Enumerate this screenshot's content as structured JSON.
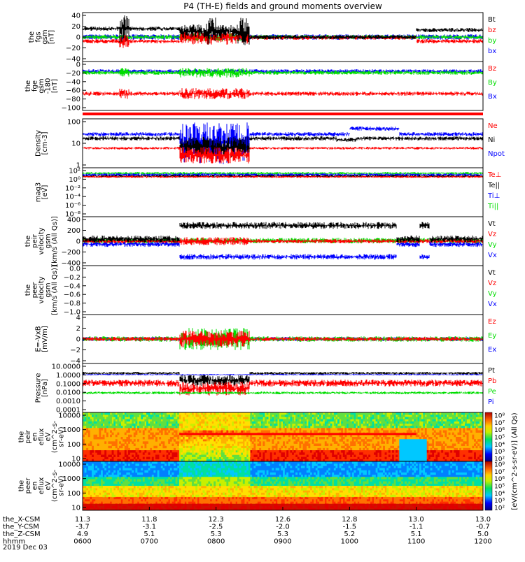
{
  "title": "P4 (TH-E) fields and ground moments overview",
  "date_label": "2019 Dec 03",
  "colors": {
    "black": "#000000",
    "red": "#ff0000",
    "green": "#00dd00",
    "blue": "#0000ff"
  },
  "footer": {
    "rows": [
      {
        "label": "the_X-CSM",
        "values": [
          "11.3",
          "11.8",
          "12.3",
          "12.6",
          "12.8",
          "13.0",
          "13.0"
        ]
      },
      {
        "label": "the_Y-CSM",
        "values": [
          "-3.7",
          "-3.1",
          "-2.5",
          "-2.0",
          "-1.5",
          "-1.1",
          "-0.7"
        ]
      },
      {
        "label": "the_Z-CSM",
        "values": [
          "4.9",
          "5.1",
          "5.3",
          "5.3",
          "5.2",
          "5.1",
          "5.0"
        ]
      },
      {
        "label": "hhmm",
        "values": [
          "0600",
          "0700",
          "0800",
          "0900",
          "1000",
          "1100",
          "1200"
        ]
      }
    ]
  },
  "chart_data": [
    {
      "type": "line",
      "id": "p1",
      "ylabel": [
        "the",
        "fgs",
        "gsm",
        "[nT]"
      ],
      "ylim": [
        -40,
        40
      ],
      "ticks": [
        "40",
        "20",
        "0",
        "−20",
        "−40"
      ],
      "legend": [
        {
          "t": "Bt",
          "c": "#000000"
        },
        {
          "t": "bz",
          "c": "#ff0000"
        },
        {
          "t": "by",
          "c": "#00dd00"
        },
        {
          "t": "bx",
          "c": "#0000ff"
        }
      ],
      "x": [
        6.0,
        7.3,
        7.45,
        7.85,
        8.3,
        8.5,
        10.7,
        11.0,
        12.0
      ]
    },
    {
      "type": "line",
      "id": "p2",
      "ylabel": [
        "the",
        "fge",
        "gsm",
        "-180",
        "[nT]"
      ],
      "ylim": [
        -100,
        20
      ],
      "ticks": [
        "0",
        "−20",
        "−40",
        "−60",
        "−80",
        "−100"
      ],
      "legend": [
        {
          "t": "Bz",
          "c": "#ff0000"
        },
        {
          "t": "By",
          "c": "#00dd00"
        },
        {
          "t": "Bx",
          "c": "#0000ff"
        }
      ],
      "x": [
        6.0,
        12.0
      ]
    },
    {
      "type": "line",
      "id": "p3",
      "ylabel": [
        "Density",
        "[cm-3]"
      ],
      "ylog": true,
      "ticks": [
        "100",
        "10",
        "1"
      ],
      "legend": [
        {
          "t": "Ne",
          "c": "#ff0000"
        },
        {
          "t": "Ni",
          "c": "#000000"
        },
        {
          "t": "Npot",
          "c": "#0000ff"
        }
      ],
      "x": [
        6.0,
        7.45,
        8.5,
        9.8,
        10.0,
        10.7,
        11.0,
        12.0
      ]
    },
    {
      "type": "line",
      "id": "p4",
      "ylabel": [
        "mag3",
        "[eV]"
      ],
      "ylog": true,
      "ticks": [
        "10²",
        "10⁰",
        "10⁻²",
        "10⁻⁴",
        "10⁻⁶",
        "10⁻⁸"
      ],
      "legend": [
        {
          "t": "Te⊥",
          "c": "#ff0000"
        },
        {
          "t": "Te||",
          "c": "#000000"
        },
        {
          "t": "Ti⊥",
          "c": "#0000ff"
        },
        {
          "t": "Ti||",
          "c": "#00dd00"
        }
      ],
      "x": [
        6.0,
        12.0
      ]
    },
    {
      "type": "line",
      "id": "p5",
      "ylabel": [
        "the",
        "peir",
        "velocity",
        "gsm",
        "[km/s (All Qs)]"
      ],
      "ylim": [
        -400,
        400
      ],
      "ticks": [
        "400",
        "200",
        "0",
        "−200",
        "−400"
      ],
      "legend": [
        {
          "t": "Vt",
          "c": "#000000"
        },
        {
          "t": "Vz",
          "c": "#ff0000"
        },
        {
          "t": "Vy",
          "c": "#00dd00"
        },
        {
          "t": "Vx",
          "c": "#0000ff"
        }
      ],
      "x": [
        6.0,
        7.45,
        8.5,
        10.7,
        11.0,
        11.2,
        12.0
      ],
      "series": [
        {
          "name": "Vt",
          "values": [
            30,
            270,
            300,
            300,
            30,
            280,
            30
          ]
        },
        {
          "name": "Vx",
          "values": [
            -60,
            -270,
            -300,
            -300,
            -60,
            -280,
            -60
          ]
        }
      ]
    },
    {
      "type": "line",
      "id": "p6",
      "ylabel": [
        "the",
        "peer",
        "velocity",
        "gsm",
        "[km/s (All Qs)]"
      ],
      "ylim": [
        -6,
        0
      ],
      "ticks": [
        "0.0",
        "−0.2",
        "−0.4",
        "−0.6",
        "−0.8",
        "−1.0"
      ],
      "legend": [
        {
          "t": "Vt",
          "c": "#000000"
        },
        {
          "t": "Vz",
          "c": "#ff0000"
        },
        {
          "t": "Vy",
          "c": "#00dd00"
        },
        {
          "t": "Vx",
          "c": "#0000ff"
        }
      ],
      "x": []
    },
    {
      "type": "line",
      "id": "p7",
      "ylabel": [
        "E=-VxB",
        "[mV/m]"
      ],
      "ylim": [
        -4,
        4
      ],
      "ticks": [
        "4",
        "2",
        "0",
        "−2",
        "−4"
      ],
      "legend": [
        {
          "t": "Ez",
          "c": "#ff0000"
        },
        {
          "t": "Ey",
          "c": "#00dd00"
        },
        {
          "t": "Ex",
          "c": "#0000ff"
        }
      ],
      "x": [
        6.0,
        12.0
      ]
    },
    {
      "type": "line",
      "id": "p8",
      "ylabel": [
        "Pressure",
        "[nPa]"
      ],
      "ylog": true,
      "ticks": [
        "10.0000",
        "1.0000",
        "0.1000",
        "0.0100",
        "0.0010",
        "0.0001"
      ],
      "legend": [
        {
          "t": "Pt",
          "c": "#000000"
        },
        {
          "t": "Pb",
          "c": "#ff0000"
        },
        {
          "t": "Pe",
          "c": "#00dd00"
        },
        {
          "t": "Pi",
          "c": "#0000ff"
        }
      ],
      "x": [
        6.0,
        12.0
      ]
    },
    {
      "type": "heatmap",
      "id": "p9",
      "ylabel": [
        "the",
        "peir",
        "en",
        "eflux",
        "eV",
        "(cm^2-s-",
        "sr-eV)"
      ],
      "ylog": true,
      "ticks": [
        "10000",
        "1000",
        "100",
        "10"
      ],
      "x": [
        6.0,
        12.0
      ]
    },
    {
      "type": "heatmap",
      "id": "p10",
      "ylabel": [
        "the",
        "peer",
        "en",
        "eflux",
        "eV",
        "(cm^2-s-",
        "sr-eV)"
      ],
      "ylog": true,
      "ticks": [
        "10000",
        "1000",
        "100",
        "10"
      ],
      "x": [
        6.0,
        12.0
      ]
    }
  ],
  "colorbar": {
    "ticks1": [
      "10⁸",
      "10⁷",
      "10⁶",
      "10⁵",
      "10⁴",
      "10³",
      "10²"
    ],
    "ticks2": [
      "10⁸",
      "10⁷",
      "10⁶",
      "10⁵",
      "10⁴",
      "10³",
      "10²"
    ],
    "label": "[eV/(cm^2-s-sr-eV)] (All Qs)"
  }
}
